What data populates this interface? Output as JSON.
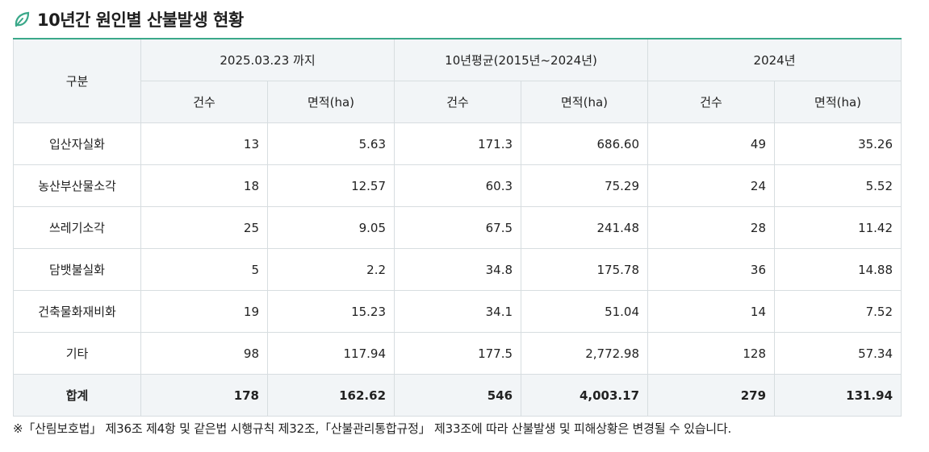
{
  "title": "10년간 원인별 산불발생 현황",
  "accent_color": "#3aa889",
  "icon": "leaf-icon",
  "table": {
    "corner_header": "구분",
    "groups": [
      "2025.03.23 까지",
      "10년평균(2015년~2024년)",
      "2024년"
    ],
    "subheaders": [
      "건수",
      "면적(ha)",
      "건수",
      "면적(ha)",
      "건수",
      "면적(ha)"
    ],
    "rows": [
      {
        "label": "입산자실화",
        "cells": [
          "13",
          "5.63",
          "171.3",
          "686.60",
          "49",
          "35.26"
        ]
      },
      {
        "label": "농산부산물소각",
        "cells": [
          "18",
          "12.57",
          "60.3",
          "75.29",
          "24",
          "5.52"
        ]
      },
      {
        "label": "쓰레기소각",
        "cells": [
          "25",
          "9.05",
          "67.5",
          "241.48",
          "28",
          "11.42"
        ]
      },
      {
        "label": "담뱃불실화",
        "cells": [
          "5",
          "2.2",
          "34.8",
          "175.78",
          "36",
          "14.88"
        ]
      },
      {
        "label": "건축물화재비화",
        "cells": [
          "19",
          "15.23",
          "34.1",
          "51.04",
          "14",
          "7.52"
        ]
      },
      {
        "label": "기타",
        "cells": [
          "98",
          "117.94",
          "177.5",
          "2,772.98",
          "128",
          "57.34"
        ]
      }
    ],
    "total": {
      "label": "합계",
      "cells": [
        "178",
        "162.62",
        "546",
        "4,003.17",
        "279",
        "131.94"
      ]
    }
  },
  "footnote": "※「산림보호법」 제36조 제4항 및 같은법 시행규칙 제32조,「산불관리통합규정」 제33조에 따라 산불발생 및 피해상황은 변경될 수 있습니다."
}
